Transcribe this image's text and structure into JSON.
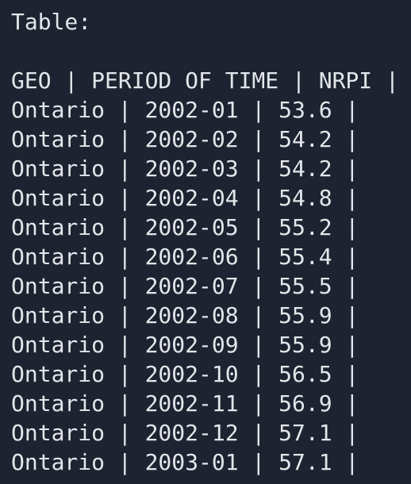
{
  "label": "Table:",
  "header": "GEO | PERIOD OF TIME | NRPI |",
  "rows": [
    "Ontario | 2002-01 | 53.6 |",
    "Ontario | 2002-02 | 54.2 |",
    "Ontario | 2002-03 | 54.2 |",
    "Ontario | 2002-04 | 54.8 |",
    "Ontario | 2002-05 | 55.2 |",
    "Ontario | 2002-06 | 55.4 |",
    "Ontario | 2002-07 | 55.5 |",
    "Ontario | 2002-08 | 55.9 |",
    "Ontario | 2002-09 | 55.9 |",
    "Ontario | 2002-10 | 56.5 |",
    "Ontario | 2002-11 | 56.9 |",
    "Ontario | 2002-12 | 57.1 |",
    "Ontario | 2003-01 | 57.1 |"
  ]
}
